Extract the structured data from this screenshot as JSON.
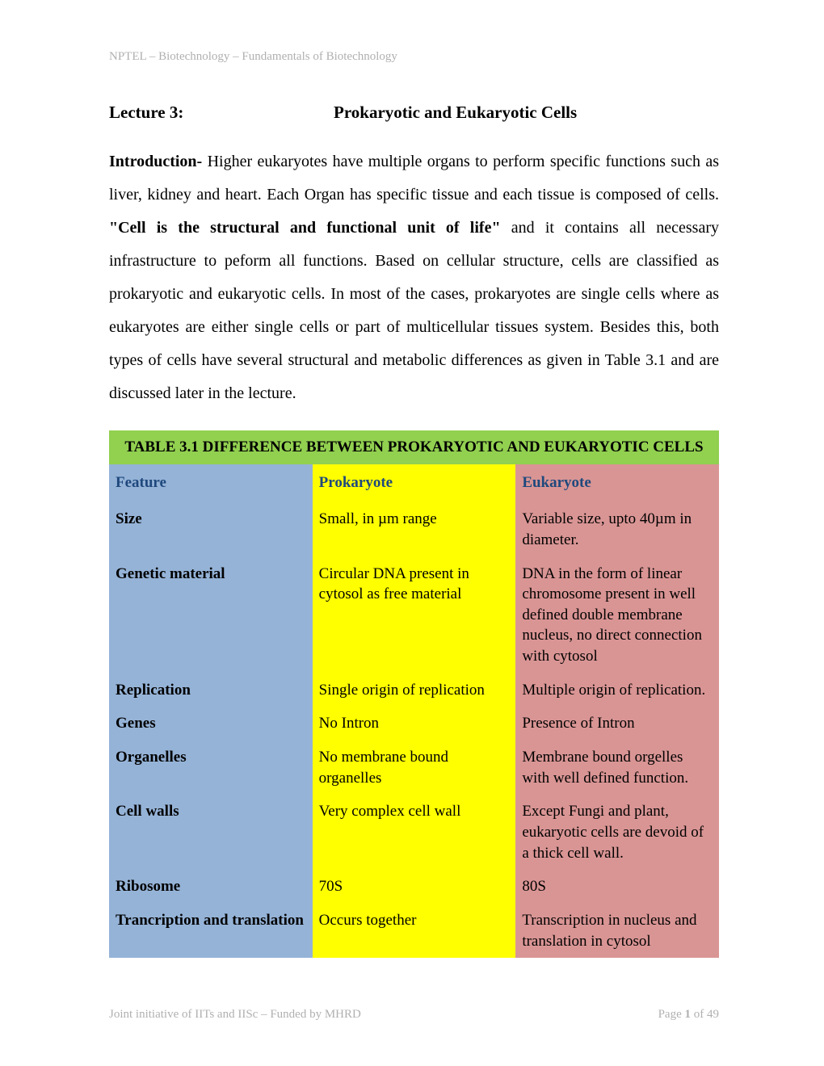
{
  "header": {
    "text": "NPTEL – Biotechnology – Fundamentals of Biotechnology"
  },
  "title": {
    "lecture_label": "Lecture 3:",
    "lecture_title": "Prokaryotic and Eukaryotic Cells"
  },
  "intro": {
    "label": "Introduction- ",
    "text_before_bold": "Higher eukaryotes have multiple organs to perform specific functions such as liver, kidney and heart. Each Organ has specific tissue and each tissue is composed of cells. ",
    "bold_quote": "\"Cell is the structural and functional unit of life\"",
    "text_after_bold": " and it contains all necessary infrastructure to peform all functions. Based on cellular structure, cells are classified as prokaryotic and eukaryotic cells. In most of the cases, prokaryotes are single cells where as eukaryotes are either single cells or part of multicellular tissues system. Besides this, both types of cells have several structural and metabolic differences as given in Table 3.1 and are discussed later in the lecture."
  },
  "table": {
    "title": "TABLE 3.1 DIFFERENCE BETWEEN PROKARYOTIC AND EUKARYOTIC CELLS",
    "title_bg": "#92d050",
    "col_feature_bg": "#95b3d7",
    "col_prokaryote_bg": "#ffff00",
    "col_eukaryote_bg": "#d99594",
    "header_color": "#1f497d",
    "columns": [
      "Feature",
      "Prokaryote",
      "Eukaryote"
    ],
    "rows": [
      {
        "feature": "Size",
        "prokaryote": "Small, in µm range",
        "eukaryote": "Variable size, upto 40µm in diameter."
      },
      {
        "feature": "Genetic material",
        "prokaryote": "Circular DNA present in cytosol as free material",
        "eukaryote": "DNA in the form of linear chromosome present in well defined double membrane nucleus, no direct connection with cytosol"
      },
      {
        "feature": "Replication",
        "prokaryote": "Single origin of replication",
        "eukaryote": "Multiple origin of replication."
      },
      {
        "feature": "Genes",
        "prokaryote": "No Intron",
        "eukaryote": "Presence of Intron"
      },
      {
        "feature": "Organelles",
        "prokaryote": "No membrane bound organelles",
        "eukaryote": "Membrane bound orgelles with well defined function."
      },
      {
        "feature": "Cell walls",
        "prokaryote": "Very complex cell wall",
        "eukaryote": "Except Fungi and plant, eukaryotic cells are devoid of a thick cell wall."
      },
      {
        "feature": "Ribosome",
        "prokaryote": "70S",
        "eukaryote": "80S"
      },
      {
        "feature": "Trancription and translation",
        "prokaryote": "Occurs together",
        "eukaryote": "Transcription in nucleus and translation in cytosol"
      }
    ]
  },
  "footer": {
    "left": "Joint initiative of IITs and IISc – Funded by MHRD",
    "page_prefix": "Page ",
    "page_current": "1",
    "page_of": " of ",
    "page_total": "49"
  }
}
